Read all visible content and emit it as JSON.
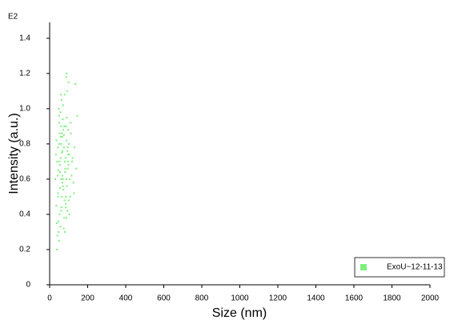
{
  "chart_data": {
    "type": "scatter",
    "y_multiplier": "E2",
    "xlabel": "Size (nm)",
    "ylabel": "Intensity (a.u.)",
    "xlim": [
      0,
      2000
    ],
    "xticks": [
      0,
      200,
      400,
      600,
      800,
      1000,
      1200,
      1400,
      1600,
      1800,
      2000
    ],
    "ylim": [
      0,
      1.49
    ],
    "yticks": [
      0,
      0.2,
      0.4,
      0.6,
      0.8,
      {
        "value": 1,
        "label": "1.0"
      },
      1.2,
      1.4
    ],
    "grid": false,
    "legend": "lower right",
    "series": [
      {
        "name": "ExoU~12-11-13",
        "color": "#7ef07e",
        "x": [
          40,
          45,
          50,
          55,
          60,
          65,
          70,
          75,
          80,
          85,
          90,
          95,
          100,
          35,
          42,
          48,
          52,
          58,
          63,
          68,
          72,
          78,
          82,
          88,
          92,
          98,
          105,
          110,
          38,
          44,
          47,
          53,
          57,
          62,
          67,
          71,
          76,
          81,
          86,
          91,
          96,
          102,
          108,
          115,
          120,
          125,
          130,
          140,
          145,
          30,
          33,
          36,
          41,
          46,
          51,
          56,
          61,
          66,
          73,
          79,
          84,
          89,
          94,
          99,
          104,
          112,
          118,
          128,
          135,
          43,
          49,
          54,
          59,
          64,
          69,
          74,
          83,
          87,
          93,
          97,
          39,
          55,
          61,
          70,
          77,
          85,
          95,
          103,
          60,
          52,
          45,
          65,
          75,
          80,
          90,
          50,
          58,
          68,
          88,
          100
        ],
        "values": [
          0.7,
          0.65,
          0.8,
          0.55,
          0.9,
          0.75,
          0.6,
          0.85,
          0.7,
          0.5,
          0.95,
          0.78,
          0.68,
          0.45,
          0.62,
          1.0,
          0.4,
          0.72,
          1.05,
          0.58,
          0.88,
          0.48,
          0.66,
          0.82,
          1.1,
          0.74,
          0.6,
          0.92,
          0.35,
          0.52,
          0.3,
          0.86,
          0.98,
          0.44,
          0.76,
          1.02,
          0.38,
          0.64,
          0.9,
          0.56,
          0.7,
          0.8,
          0.5,
          0.62,
          0.72,
          0.58,
          0.78,
          0.66,
          0.96,
          0.6,
          0.74,
          0.82,
          0.28,
          0.36,
          0.92,
          0.33,
          0.42,
          0.84,
          0.54,
          1.08,
          0.46,
          0.6,
          0.76,
          1.15,
          0.4,
          0.86,
          0.7,
          0.52,
          1.14,
          0.78,
          0.25,
          0.68,
          1.08,
          0.5,
          0.94,
          0.32,
          0.72,
          1.18,
          0.42,
          0.88,
          0.2,
          0.64,
          0.8,
          0.56,
          0.9,
          0.44,
          0.66,
          0.74,
          0.6,
          0.7,
          0.5,
          0.86,
          0.78,
          0.3,
          1.2,
          0.96,
          0.84,
          0.62,
          0.38,
          0.48
        ]
      }
    ]
  }
}
